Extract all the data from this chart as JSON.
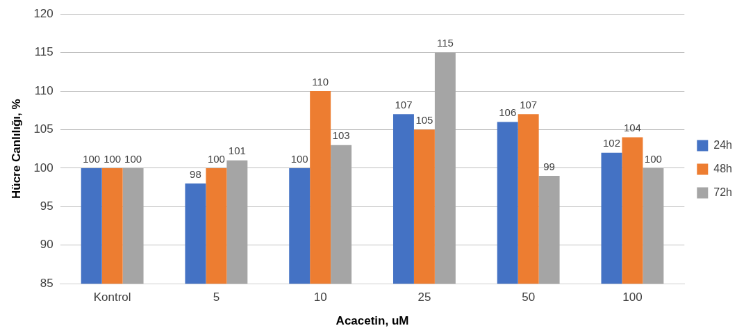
{
  "chart_data": {
    "type": "bar",
    "xlabel": "Acacetin, uM",
    "ylabel": "Hücre Canlılığı, %",
    "categories": [
      "Kontrol",
      "5",
      "10",
      "25",
      "50",
      "100"
    ],
    "series": [
      {
        "name": "24h",
        "color": "#4472c4",
        "values": [
          100,
          98,
          100,
          107,
          106,
          102
        ]
      },
      {
        "name": "48h",
        "color": "#ed7d31",
        "values": [
          100,
          100,
          110,
          105,
          107,
          104
        ]
      },
      {
        "name": "72h",
        "color": "#a5a5a5",
        "values": [
          100,
          101,
          103,
          115,
          99,
          100
        ]
      }
    ],
    "ylim": [
      85,
      120
    ],
    "yticks": [
      85,
      90,
      95,
      100,
      105,
      110,
      115,
      120
    ],
    "grid": "y",
    "legend": "right",
    "data_labels": true
  }
}
